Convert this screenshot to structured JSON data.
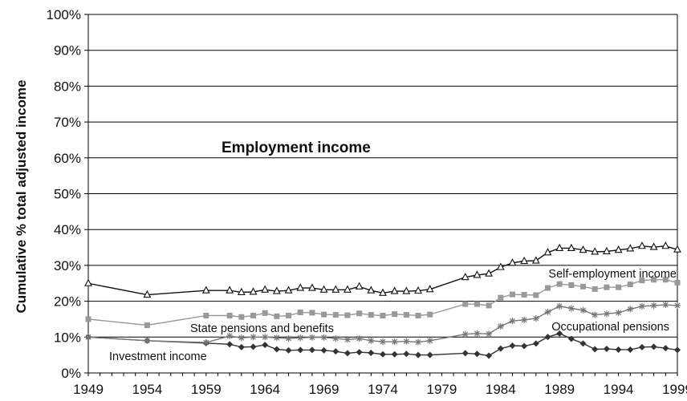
{
  "chart_data": {
    "type": "area",
    "ylabel": "Cumulative % total adjusted income",
    "ylim": [
      0,
      100
    ],
    "yticks": [
      "0%",
      "10%",
      "20%",
      "30%",
      "40%",
      "50%",
      "60%",
      "70%",
      "80%",
      "90%",
      "100%"
    ],
    "xticks": [
      "1949",
      "1954",
      "1959",
      "1964",
      "1969",
      "1974",
      "1979",
      "1984",
      "1989",
      "1994",
      "1999"
    ],
    "xlim": [
      1949,
      1999
    ],
    "grid": "horizontal",
    "area_labels": {
      "employment": "Employment income",
      "self_employment": "Self-employment income",
      "pensions_benefits": "State pensions and benefits",
      "occupational": "Occupational pensions",
      "investment": "Investment income"
    },
    "series": [
      {
        "name": "Investment income",
        "color": "#333333",
        "marker": "diamond",
        "x": [
          1949,
          1954,
          1959,
          1961,
          1962,
          1963,
          1964,
          1965,
          1966,
          1967,
          1968,
          1969,
          1970,
          1971,
          1972,
          1973,
          1974,
          1975,
          1976,
          1977,
          1978,
          1981,
          1982,
          1983,
          1984,
          1985,
          1986,
          1987,
          1988,
          1989,
          1990,
          1991,
          1992,
          1993,
          1994,
          1995,
          1996,
          1997,
          1998,
          1999
        ],
        "values": [
          10,
          9,
          8.3,
          8,
          7.2,
          7.3,
          7.8,
          6.6,
          6.3,
          6.4,
          6.4,
          6.3,
          6,
          5.5,
          5.8,
          5.6,
          5.2,
          5.2,
          5.3,
          5,
          5,
          5.5,
          5.3,
          4.8,
          6.8,
          7.6,
          7.5,
          8.2,
          10,
          11,
          9.5,
          8.2,
          6.6,
          6.7,
          6.5,
          6.5,
          7.2,
          7.3,
          6.9,
          6.4
        ]
      },
      {
        "name": "Occupational pensions",
        "color": "#777777",
        "marker": "asterisk",
        "x": [
          1949,
          1954,
          1959,
          1961,
          1962,
          1963,
          1964,
          1965,
          1966,
          1967,
          1968,
          1969,
          1970,
          1971,
          1972,
          1973,
          1974,
          1975,
          1976,
          1977,
          1978,
          1981,
          1982,
          1983,
          1984,
          1985,
          1986,
          1987,
          1988,
          1989,
          1990,
          1991,
          1992,
          1993,
          1994,
          1995,
          1996,
          1997,
          1998,
          1999
        ],
        "values": [
          10,
          9,
          8.5,
          10.3,
          9.8,
          10,
          10,
          9.8,
          9.6,
          9.8,
          9.9,
          9.9,
          9.6,
          9.3,
          9.6,
          9,
          8.7,
          8.7,
          8.8,
          8.6,
          9,
          10.8,
          11,
          10.9,
          13,
          14.5,
          14.8,
          15.2,
          17,
          18.6,
          18,
          17.5,
          16.2,
          16.5,
          16.8,
          17.8,
          18.6,
          18.8,
          19,
          18.8
        ]
      },
      {
        "name": "State pensions and benefits",
        "color": "#999999",
        "marker": "square",
        "x": [
          1949,
          1954,
          1959,
          1961,
          1962,
          1963,
          1964,
          1965,
          1966,
          1967,
          1968,
          1969,
          1970,
          1971,
          1972,
          1973,
          1974,
          1975,
          1976,
          1977,
          1978,
          1981,
          1982,
          1983,
          1984,
          1985,
          1986,
          1987,
          1988,
          1989,
          1990,
          1991,
          1992,
          1993,
          1994,
          1995,
          1996,
          1997,
          1998,
          1999
        ],
        "values": [
          15,
          13.3,
          16,
          16,
          15.6,
          16,
          16.7,
          15.8,
          16,
          16.9,
          16.8,
          16.3,
          16.2,
          16.1,
          16.6,
          16.2,
          16,
          16.4,
          16.2,
          16,
          16.3,
          19.2,
          19.2,
          18.8,
          21,
          21.9,
          21.8,
          21.7,
          23.7,
          24.8,
          24.5,
          24.1,
          23.4,
          23.9,
          23.9,
          24.7,
          25.8,
          26,
          26,
          25.2
        ]
      },
      {
        "name": "Self-employment income",
        "color": "#111111",
        "marker": "triangle",
        "x": [
          1949,
          1954,
          1959,
          1961,
          1962,
          1963,
          1964,
          1965,
          1966,
          1967,
          1968,
          1969,
          1970,
          1971,
          1972,
          1973,
          1974,
          1975,
          1976,
          1977,
          1978,
          1981,
          1982,
          1983,
          1984,
          1985,
          1986,
          1987,
          1988,
          1989,
          1990,
          1991,
          1992,
          1993,
          1994,
          1995,
          1996,
          1997,
          1998,
          1999
        ],
        "values": [
          25,
          21.8,
          23,
          23,
          22.5,
          22.6,
          23.2,
          22.8,
          23,
          23.7,
          23.7,
          23.2,
          23.2,
          23.2,
          24.1,
          23,
          22.3,
          22.8,
          22.8,
          22.9,
          23.3,
          26.7,
          27.3,
          27.7,
          29.5,
          30.7,
          31.2,
          31.3,
          33.6,
          34.8,
          34.8,
          34.3,
          33.8,
          33.9,
          34.3,
          34.7,
          35.4,
          35.1,
          35.4,
          34.4
        ]
      }
    ],
    "top_band": "Employment income (to 100%)"
  }
}
